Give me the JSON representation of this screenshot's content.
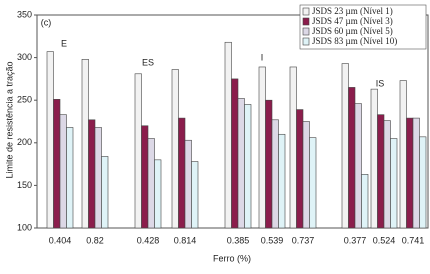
{
  "chart_data": {
    "type": "bar",
    "annotations": [
      "(c)",
      "E",
      "ES",
      "I",
      "IS"
    ],
    "x_label": "Ferro (%)",
    "y_label": "Limite de resistência a tração",
    "categories": [
      "0.404",
      "0.82",
      "0.428",
      "0.814",
      "0.385",
      "0.539",
      "0.737",
      "0.377",
      "0.524",
      "0.741"
    ],
    "series": [
      {
        "name": "JSDS 23 µm (Nível 1)",
        "color": "#f2f2f2",
        "values": [
          307,
          298,
          281,
          286,
          318,
          289,
          289,
          293,
          263,
          273
        ]
      },
      {
        "name": "JSDS 47 µm (Nível 3)",
        "color": "#8b1d4c",
        "values": [
          251,
          227,
          220,
          229,
          275,
          250,
          239,
          265,
          233,
          229
        ]
      },
      {
        "name": "JSDS 60 µm (Nível 5)",
        "color": "#dcd8e6",
        "values": [
          233,
          218,
          205,
          203,
          252,
          227,
          225,
          246,
          226,
          229
        ]
      },
      {
        "name": "JSDS 83 µm (Nível 10)",
        "color": "#dff3f7",
        "values": [
          218,
          184,
          180,
          178,
          245,
          210,
          206,
          163,
          205,
          207
        ]
      }
    ],
    "ylim": [
      100,
      350
    ],
    "yticks": [
      100,
      150,
      200,
      250,
      300,
      350
    ],
    "grid": false,
    "legend": "top-right"
  }
}
